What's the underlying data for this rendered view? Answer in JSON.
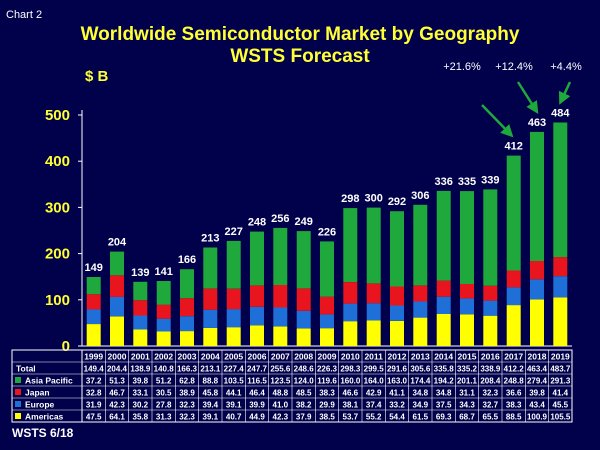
{
  "chart_label": "Chart 2",
  "title_line1": "Worldwide Semiconductor Market by Geography",
  "title_line2": "WSTS Forecast",
  "unit_label": "$ B",
  "footer_note": "WSTS 6/18",
  "colors": {
    "background": "#00004b",
    "americas": "#ffff00",
    "europe": "#1e6fd8",
    "japan": "#e8141e",
    "asia_pacific": "#1fa83c",
    "title": "#ffff33",
    "arrow": "#1fa83c"
  },
  "growth_labels": [
    {
      "year": "2017",
      "text": "+21.6%"
    },
    {
      "year": "2018",
      "text": "+12.4%"
    },
    {
      "year": "2019",
      "text": "+4.4%"
    }
  ],
  "chart_data": {
    "type": "bar",
    "stacked": true,
    "title": "Worldwide Semiconductor Market by Geography — WSTS Forecast",
    "ylabel": "$ B",
    "ylim": [
      0,
      500
    ],
    "yticks": [
      0,
      100,
      200,
      300,
      400,
      500
    ],
    "categories": [
      "1999",
      "2000",
      "2001",
      "2002",
      "2003",
      "2004",
      "2005",
      "2006",
      "2007",
      "2008",
      "2009",
      "2010",
      "2011",
      "2012",
      "2013",
      "2014",
      "2015",
      "2016",
      "2017",
      "2018",
      "2019"
    ],
    "totals_rounded": [
      "149",
      "204",
      "139",
      "141",
      "166",
      "213",
      "227",
      "248",
      "256",
      "249",
      "226",
      "298",
      "300",
      "292",
      "306",
      "336",
      "335",
      "339",
      "412",
      "463",
      "484"
    ],
    "series": [
      {
        "name": "Americas",
        "key": "americas",
        "values": [
          47.5,
          64.1,
          35.8,
          31.3,
          32.3,
          39.1,
          40.7,
          44.9,
          42.3,
          37.9,
          38.5,
          53.7,
          55.2,
          54.4,
          61.5,
          69.3,
          68.7,
          65.5,
          88.5,
          100.9,
          105.5
        ]
      },
      {
        "name": "Europe",
        "key": "europe",
        "values": [
          31.9,
          42.3,
          30.2,
          27.8,
          32.3,
          39.4,
          39.1,
          39.9,
          41.0,
          38.2,
          29.9,
          38.1,
          37.4,
          33.2,
          34.9,
          37.5,
          34.3,
          32.7,
          38.3,
          43.4,
          45.5
        ]
      },
      {
        "name": "Japan",
        "key": "japan",
        "values": [
          32.8,
          46.7,
          33.1,
          30.5,
          38.9,
          45.8,
          44.1,
          46.4,
          48.8,
          48.5,
          38.3,
          46.6,
          42.9,
          41.1,
          34.8,
          34.8,
          31.1,
          32.3,
          36.6,
          39.8,
          41.4
        ]
      },
      {
        "name": "Asia Pacific",
        "key": "asia_pacific",
        "values": [
          37.2,
          51.3,
          39.8,
          51.2,
          62.8,
          88.8,
          103.5,
          116.5,
          123.5,
          124.0,
          119.6,
          160.0,
          164.0,
          163.0,
          174.4,
          194.2,
          201.1,
          208.4,
          248.8,
          279.4,
          291.3
        ]
      }
    ],
    "table": {
      "header": [
        "1999",
        "2000",
        "2001",
        "2002",
        "2003",
        "2004",
        "2005",
        "2006",
        "2007",
        "2008",
        "2009",
        "2010",
        "2011",
        "2012",
        "2013",
        "2014",
        "2015",
        "2016",
        "2017",
        "2018",
        "2019"
      ],
      "rows": [
        {
          "label": "Total",
          "key": "total",
          "values": [
            "149.4",
            "204.4",
            "138.9",
            "140.8",
            "166.3",
            "213.1",
            "227.4",
            "247.7",
            "255.6",
            "248.6",
            "226.3",
            "298.3",
            "299.5",
            "291.6",
            "305.6",
            "335.8",
            "335.2",
            "338.9",
            "412.2",
            "463.4",
            "483.7"
          ]
        },
        {
          "label": "Asia Pacific",
          "key": "asia_pacific",
          "values": [
            "37.2",
            "51.3",
            "39.8",
            "51.2",
            "62.8",
            "88.8",
            "103.5",
            "116.5",
            "123.5",
            "124.0",
            "119.6",
            "160.0",
            "164.0",
            "163.0",
            "174.4",
            "194.2",
            "201.1",
            "208.4",
            "248.8",
            "279.4",
            "291.3"
          ]
        },
        {
          "label": "Japan",
          "key": "japan",
          "values": [
            "32.8",
            "46.7",
            "33.1",
            "30.5",
            "38.9",
            "45.8",
            "44.1",
            "46.4",
            "48.8",
            "48.5",
            "38.3",
            "46.6",
            "42.9",
            "41.1",
            "34.8",
            "34.8",
            "31.1",
            "32.3",
            "36.6",
            "39.8",
            "41.4"
          ]
        },
        {
          "label": "Europe",
          "key": "europe",
          "values": [
            "31.9",
            "42.3",
            "30.2",
            "27.8",
            "32.3",
            "39.4",
            "39.1",
            "39.9",
            "41.0",
            "38.2",
            "29.9",
            "38.1",
            "37.4",
            "33.2",
            "34.9",
            "37.5",
            "34.3",
            "32.7",
            "38.3",
            "43.4",
            "45.5"
          ]
        },
        {
          "label": "Americas",
          "key": "americas",
          "values": [
            "47.5",
            "64.1",
            "35.8",
            "31.3",
            "32.3",
            "39.1",
            "40.7",
            "44.9",
            "42.3",
            "37.9",
            "38.5",
            "53.7",
            "55.2",
            "54.4",
            "61.5",
            "69.3",
            "68.7",
            "65.5",
            "88.5",
            "100.9",
            "105.5"
          ]
        }
      ]
    }
  }
}
